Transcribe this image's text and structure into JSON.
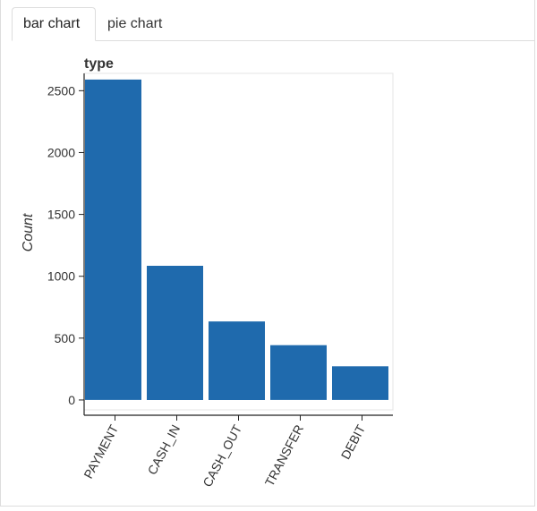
{
  "tabs": [
    {
      "label": "bar chart",
      "active": true
    },
    {
      "label": "pie chart",
      "active": false
    }
  ],
  "colors": {
    "bar": "#1f6aad",
    "axis": "#222222",
    "tab_border": "#dddddd"
  },
  "chart_data": {
    "type": "bar",
    "title": "type",
    "xlabel": "",
    "ylabel": "Count",
    "categories": [
      "PAYMENT",
      "CASH_IN",
      "CASH_OUT",
      "TRANSFER",
      "DEBIT"
    ],
    "values": [
      2590,
      1085,
      635,
      443,
      272
    ],
    "ylim": [
      -80,
      2640
    ],
    "yticks": [
      0,
      500,
      1000,
      1500,
      2000,
      2500
    ],
    "ytick_labels": [
      "0",
      "500",
      "1000",
      "1500",
      "2000",
      "2500"
    ],
    "grid": false,
    "legend": "none"
  }
}
